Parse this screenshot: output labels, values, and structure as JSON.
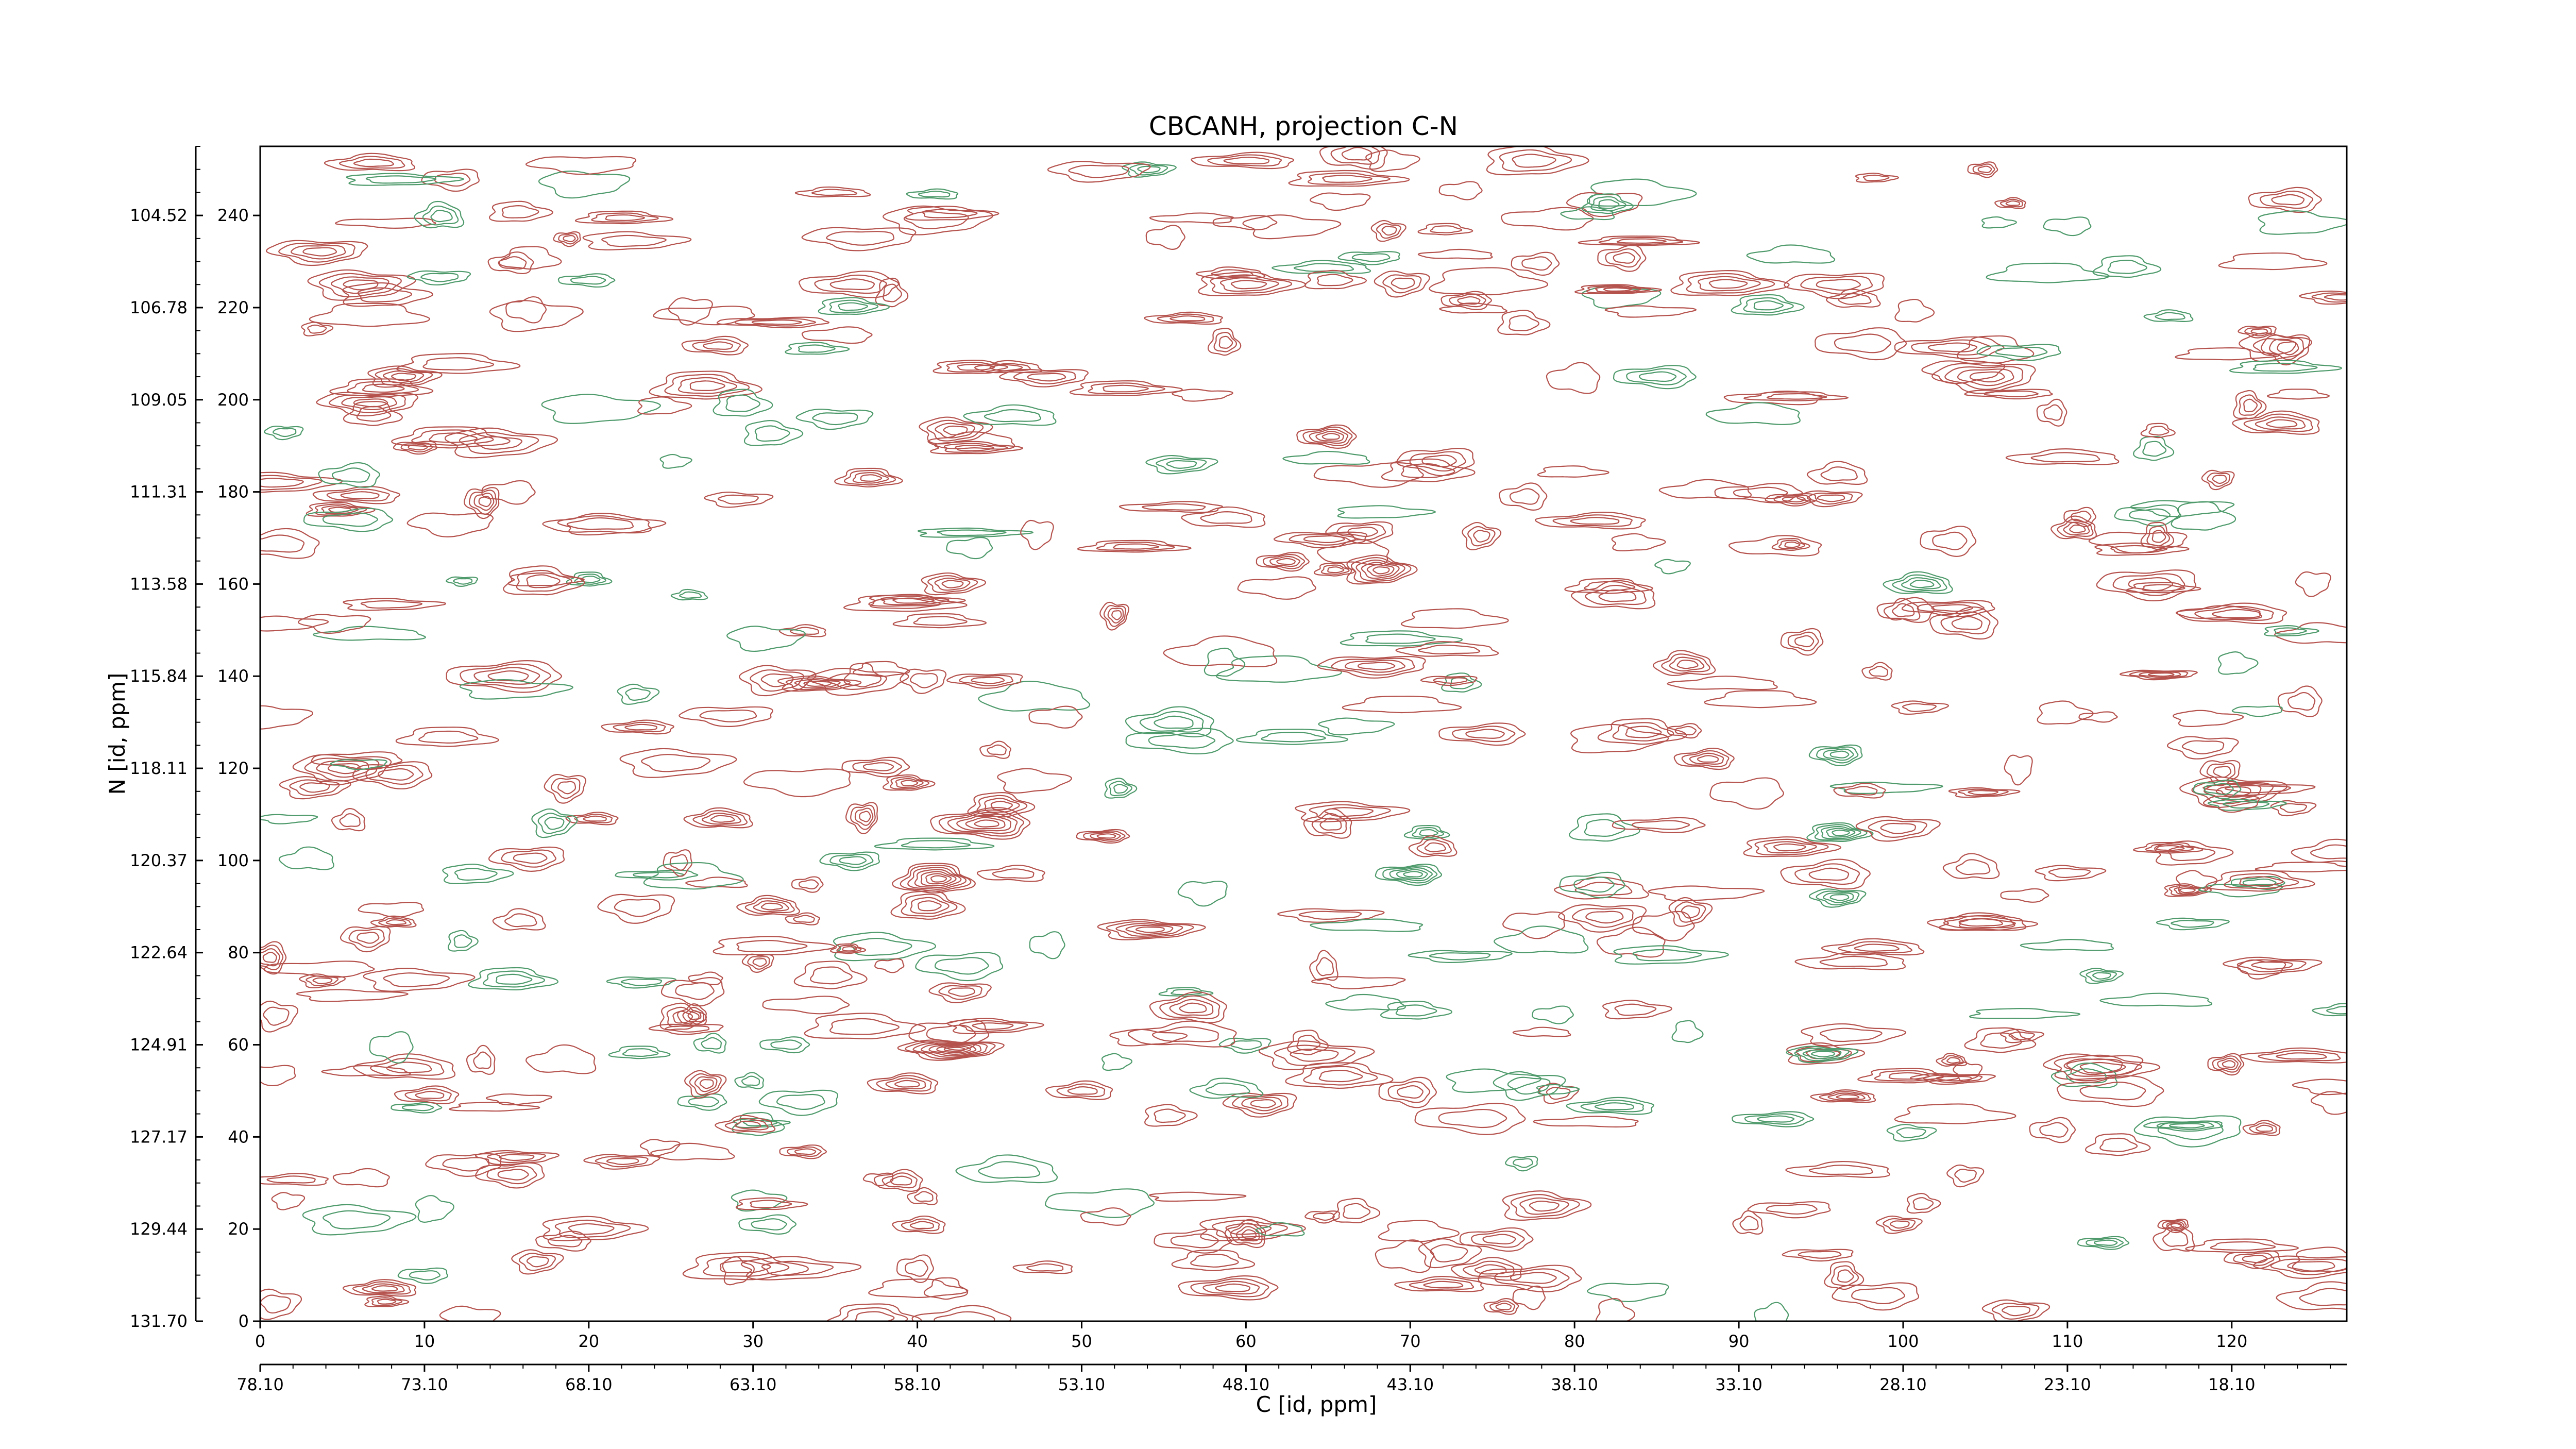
{
  "chart_data": {
    "type": "contour",
    "title": "CBCANH, projection C-N",
    "xlabel": "C [id, ppm]",
    "ylabel": "N [id, ppm]",
    "xlim": [
      0,
      127
    ],
    "ylim": [
      0,
      255
    ],
    "x_ticks": [
      0,
      10,
      20,
      30,
      40,
      50,
      60,
      70,
      80,
      90,
      100,
      110,
      120
    ],
    "x_tick_labels": [
      "0",
      "10",
      "20",
      "30",
      "40",
      "50",
      "60",
      "70",
      "80",
      "90",
      "100",
      "110",
      "120"
    ],
    "x_ppm_ticks": [
      0,
      10,
      20,
      30,
      40,
      50,
      60,
      70,
      80,
      90,
      100,
      110,
      120
    ],
    "x_ppm_labels": [
      "78.10",
      "73.10",
      "68.10",
      "63.10",
      "58.10",
      "53.10",
      "48.10",
      "43.10",
      "38.10",
      "33.10",
      "28.10",
      "23.10",
      "18.10"
    ],
    "y_ticks": [
      0,
      20,
      40,
      60,
      80,
      100,
      120,
      140,
      160,
      180,
      200,
      220,
      240
    ],
    "y_tick_labels": [
      "0",
      "20",
      "40",
      "60",
      "80",
      "100",
      "120",
      "140",
      "160",
      "180",
      "200",
      "220",
      "240"
    ],
    "y_ppm_labels": [
      "131.70",
      "129.44",
      "127.17",
      "124.91",
      "122.64",
      "120.37",
      "118.11",
      "115.84",
      "113.58",
      "111.31",
      "109.05",
      "106.78",
      "104.52"
    ],
    "colors": {
      "positive": "#b5524d",
      "negative": "#4e9a6b"
    },
    "peaks": [
      {
        "x": 41,
        "y": 96,
        "sign": "pos",
        "levels": 7,
        "rx": 2.2,
        "ry": 3.2
      },
      {
        "x": 44,
        "y": 108,
        "sign": "pos",
        "levels": 6,
        "rx": 3.0,
        "ry": 3.0
      },
      {
        "x": 42,
        "y": 59,
        "sign": "pos",
        "levels": 7,
        "rx": 3.0,
        "ry": 2.0
      },
      {
        "x": 68,
        "y": 163,
        "sign": "pos",
        "levels": 6,
        "rx": 2.0,
        "ry": 3.0
      },
      {
        "x": 65,
        "y": 192,
        "sign": "pos",
        "levels": 5,
        "rx": 1.8,
        "ry": 2.2
      },
      {
        "x": 54,
        "y": 85,
        "sign": "pos",
        "levels": 5,
        "rx": 3.0,
        "ry": 2.0
      },
      {
        "x": 28,
        "y": 109,
        "sign": "pos",
        "levels": 4,
        "rx": 2.0,
        "ry": 2.0
      },
      {
        "x": 42,
        "y": 160,
        "sign": "pos",
        "levels": 4,
        "rx": 1.8,
        "ry": 2.2
      },
      {
        "x": 31,
        "y": 90,
        "sign": "pos",
        "levels": 4,
        "rx": 1.8,
        "ry": 2.0
      },
      {
        "x": 37,
        "y": 183,
        "sign": "pos",
        "levels": 4,
        "rx": 1.8,
        "ry": 2.0
      },
      {
        "x": 50,
        "y": 50,
        "sign": "pos",
        "levels": 3,
        "rx": 2.0,
        "ry": 1.8
      },
      {
        "x": 88,
        "y": 122,
        "sign": "pos",
        "levels": 4,
        "rx": 1.8,
        "ry": 2.0
      },
      {
        "x": 95,
        "y": 58,
        "sign": "pos",
        "levels": 3,
        "rx": 2.2,
        "ry": 2.2
      },
      {
        "x": 6,
        "y": 225,
        "sign": "pos",
        "levels": 4,
        "rx": 3.0,
        "ry": 3.0
      },
      {
        "x": 27,
        "y": 203,
        "sign": "pos",
        "levels": 4,
        "rx": 3.0,
        "ry": 3.0
      },
      {
        "x": 15,
        "y": 140,
        "sign": "pos",
        "levels": 4,
        "rx": 3.5,
        "ry": 3.0
      },
      {
        "x": 5,
        "y": 120,
        "sign": "pos",
        "levels": 4,
        "rx": 2.8,
        "ry": 3.0
      },
      {
        "x": 105,
        "y": 205,
        "sign": "pos",
        "levels": 4,
        "rx": 3.0,
        "ry": 3.0
      },
      {
        "x": 115,
        "y": 160,
        "sign": "pos",
        "levels": 3,
        "rx": 3.0,
        "ry": 3.0
      },
      {
        "x": 120,
        "y": 115,
        "sign": "pos",
        "levels": 4,
        "rx": 3.0,
        "ry": 3.0
      },
      {
        "x": 112,
        "y": 55,
        "sign": "pos",
        "levels": 3,
        "rx": 3.0,
        "ry": 2.5
      },
      {
        "x": 78,
        "y": 25,
        "sign": "pos",
        "levels": 4,
        "rx": 2.5,
        "ry": 3.0
      },
      {
        "x": 60,
        "y": 225,
        "sign": "pos",
        "levels": 4,
        "rx": 3.0,
        "ry": 2.5
      },
      {
        "x": 36,
        "y": 225,
        "sign": "pos",
        "levels": 3,
        "rx": 3.0,
        "ry": 2.5
      },
      {
        "x": 96,
        "y": 225,
        "sign": "pos",
        "levels": 3,
        "rx": 3.0,
        "ry": 2.5
      },
      {
        "x": 9,
        "y": 55,
        "sign": "pos",
        "levels": 3,
        "rx": 3.0,
        "ry": 2.5
      },
      {
        "x": 60,
        "y": 20,
        "sign": "pos",
        "levels": 3,
        "rx": 3.0,
        "ry": 2.5
      },
      {
        "x": 20,
        "y": 20,
        "sign": "pos",
        "levels": 3,
        "rx": 3.0,
        "ry": 2.5
      },
      {
        "x": 96,
        "y": 106,
        "sign": "neg",
        "levels": 5,
        "rx": 1.8,
        "ry": 2.0
      },
      {
        "x": 96,
        "y": 92,
        "sign": "neg",
        "levels": 4,
        "rx": 1.6,
        "ry": 1.8
      },
      {
        "x": 96,
        "y": 123,
        "sign": "neg",
        "levels": 4,
        "rx": 1.6,
        "ry": 2.0
      },
      {
        "x": 70,
        "y": 97,
        "sign": "neg",
        "levels": 5,
        "rx": 2.0,
        "ry": 2.0
      },
      {
        "x": 71,
        "y": 106,
        "sign": "neg",
        "levels": 3,
        "rx": 1.2,
        "ry": 1.5
      },
      {
        "x": 95,
        "y": 58,
        "sign": "neg",
        "levels": 4,
        "rx": 2.0,
        "ry": 1.6
      },
      {
        "x": 101,
        "y": 160,
        "sign": "neg",
        "levels": 4,
        "rx": 2.0,
        "ry": 2.2
      },
      {
        "x": 56,
        "y": 186,
        "sign": "neg",
        "levels": 3,
        "rx": 2.0,
        "ry": 1.8
      },
      {
        "x": 36,
        "y": 100,
        "sign": "neg",
        "levels": 3,
        "rx": 1.8,
        "ry": 1.8
      },
      {
        "x": 20,
        "y": 161,
        "sign": "neg",
        "levels": 3,
        "rx": 1.2,
        "ry": 1.5
      },
      {
        "x": 54,
        "y": 250,
        "sign": "neg",
        "levels": 3,
        "rx": 1.5,
        "ry": 1.5
      },
      {
        "x": 35,
        "y": 196,
        "sign": "neg",
        "levels": 2,
        "rx": 2.2,
        "ry": 2.0
      },
      {
        "x": 85,
        "y": 205,
        "sign": "neg",
        "levels": 3,
        "rx": 2.5,
        "ry": 2.2
      },
      {
        "x": 112,
        "y": 75,
        "sign": "neg",
        "levels": 3,
        "rx": 1.2,
        "ry": 1.5
      },
      {
        "x": 13,
        "y": 97,
        "sign": "neg",
        "levels": 2,
        "rx": 2.0,
        "ry": 2.0
      },
      {
        "x": 115,
        "y": 175,
        "sign": "neg",
        "levels": 2,
        "rx": 2.0,
        "ry": 2.0
      },
      {
        "x": 10,
        "y": 10,
        "sign": "neg",
        "levels": 2,
        "rx": 1.5,
        "ry": 1.5
      },
      {
        "x": 32,
        "y": 60,
        "sign": "neg",
        "levels": 2,
        "rx": 1.5,
        "ry": 1.5
      },
      {
        "x": 60,
        "y": 60,
        "sign": "neg",
        "levels": 2,
        "rx": 1.5,
        "ry": 1.5
      }
    ]
  }
}
